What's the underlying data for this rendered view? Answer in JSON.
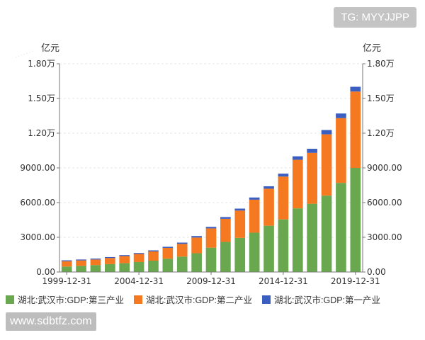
{
  "watermark_tag": "TG: MYYJJPP",
  "site_url": "www.sdbtfz.com",
  "chart_data": {
    "type": "bar",
    "stacked": true,
    "unit_label_left": "亿元",
    "unit_label_right": "亿元",
    "ylim": [
      0,
      18000
    ],
    "y_ticks": [
      0,
      3000,
      6000,
      9000,
      12000,
      15000,
      18000
    ],
    "y_tick_labels": [
      "0.00",
      "3000.00",
      "6000.00",
      "9000.00",
      "1.20万",
      "1.50万",
      "1.80万"
    ],
    "categories": [
      "1999-12-31",
      "2000-12-31",
      "2001-12-31",
      "2002-12-31",
      "2003-12-31",
      "2004-12-31",
      "2005-12-31",
      "2006-12-31",
      "2007-12-31",
      "2008-12-31",
      "2009-12-31",
      "2010-12-31",
      "2011-12-31",
      "2012-12-31",
      "2013-12-31",
      "2014-12-31",
      "2015-12-31",
      "2016-12-31",
      "2017-12-31",
      "2018-12-31",
      "2019-12-31"
    ],
    "x_tick_labels": [
      "1999-12-31",
      "2004-12-31",
      "2009-12-31",
      "2014-12-31",
      "2019-12-31"
    ],
    "x_tick_indices": [
      0,
      5,
      10,
      15,
      20
    ],
    "series": [
      {
        "name": "湖北:武汉市:GDP:第三产业",
        "color": "#6aa84f",
        "values": [
          470,
          530,
          600,
          680,
          760,
          860,
          980,
          1150,
          1330,
          1620,
          2100,
          2600,
          2950,
          3400,
          4000,
          4550,
          5500,
          5900,
          6600,
          7700,
          9000
        ]
      },
      {
        "name": "湖北:武汉市:GDP:第二产业",
        "color": "#f47920",
        "values": [
          460,
          470,
          480,
          530,
          620,
          700,
          800,
          930,
          1100,
          1360,
          1670,
          2000,
          2360,
          2850,
          3200,
          3700,
          4200,
          4400,
          5300,
          5600,
          6600
        ]
      },
      {
        "name": "湖北:武汉市:GDP:第一产业",
        "color": "#3b5fc0",
        "values": [
          80,
          80,
          80,
          80,
          80,
          80,
          90,
          100,
          110,
          130,
          130,
          150,
          170,
          190,
          210,
          250,
          300,
          350,
          370,
          400,
          410
        ]
      }
    ]
  }
}
